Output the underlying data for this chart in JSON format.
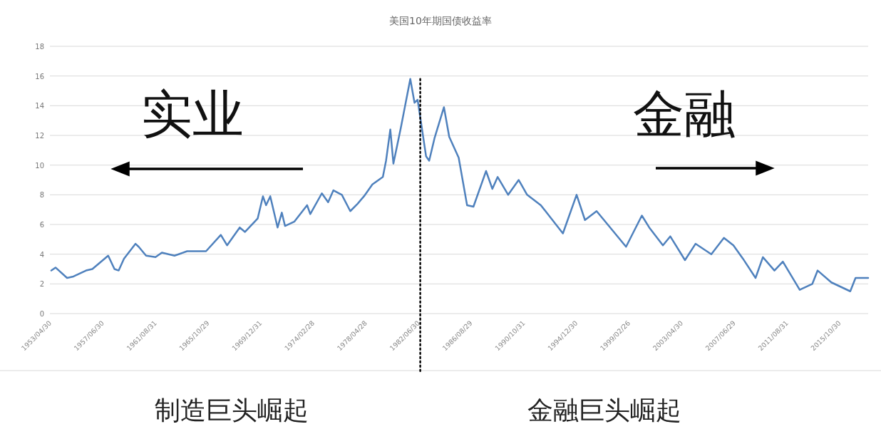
{
  "chart_data": {
    "type": "line",
    "title": "美国10年期国债收益率",
    "x": [
      "1953-04",
      "1953-08",
      "1954-07",
      "1955-01",
      "1956-01",
      "1956-07",
      "1957-10",
      "1958-04",
      "1958-08",
      "1959-01",
      "1959-12",
      "1960-03",
      "1960-10",
      "1961-07",
      "1962-01",
      "1963-01",
      "1964-01",
      "1965-07",
      "1966-09",
      "1967-03",
      "1968-03",
      "1968-08",
      "1969-08",
      "1970-01",
      "1970-04",
      "1970-08",
      "1971-03",
      "1971-07",
      "1971-10",
      "1972-07",
      "1973-07",
      "1973-10",
      "1974-09",
      "1975-03",
      "1975-08",
      "1976-04",
      "1976-12",
      "1977-07",
      "1978-01",
      "1978-09",
      "1979-07",
      "1979-10",
      "1980-02",
      "1980-05",
      "1980-12",
      "1981-09",
      "1982-01",
      "1982-04",
      "1982-12",
      "1983-03",
      "1983-08",
      "1984-05",
      "1984-10",
      "1985-07",
      "1986-03",
      "1986-09",
      "1987-09",
      "1988-03",
      "1988-08",
      "1989-06",
      "1990-04",
      "1990-12",
      "1992-01",
      "1993-10",
      "1994-11",
      "1995-07",
      "1996-06",
      "1997-01",
      "1998-10",
      "2000-01",
      "2000-08",
      "2001-09",
      "2002-04",
      "2003-06",
      "2004-04",
      "2005-07",
      "2006-07",
      "2007-04",
      "2008-01",
      "2009-01",
      "2009-08",
      "2010-07",
      "2011-03",
      "2012-07",
      "2013-07",
      "2013-12",
      "2015-01",
      "2016-07",
      "2016-12",
      "2017-12"
    ],
    "series": [
      {
        "color": "#4f81bd",
        "values": [
          2.9,
          3.1,
          2.4,
          2.5,
          2.9,
          3.0,
          3.9,
          3.0,
          2.9,
          3.7,
          4.7,
          4.5,
          3.9,
          3.8,
          4.1,
          3.9,
          4.2,
          4.2,
          5.3,
          4.6,
          5.8,
          5.5,
          6.4,
          7.9,
          7.3,
          7.9,
          5.8,
          6.8,
          5.9,
          6.2,
          7.3,
          6.7,
          8.1,
          7.5,
          8.3,
          8.0,
          6.9,
          7.4,
          7.9,
          8.7,
          9.2,
          10.3,
          12.4,
          10.1,
          12.5,
          15.8,
          14.2,
          14.4,
          10.6,
          10.3,
          11.8,
          13.9,
          11.9,
          10.5,
          7.3,
          7.2,
          9.6,
          8.4,
          9.2,
          8.0,
          9.0,
          8.0,
          7.3,
          5.4,
          8.0,
          6.3,
          6.9,
          6.3,
          4.5,
          6.6,
          5.8,
          4.6,
          5.2,
          3.6,
          4.7,
          4.0,
          5.1,
          4.6,
          3.7,
          2.4,
          3.8,
          2.9,
          3.5,
          1.6,
          2.0,
          2.9,
          2.1,
          1.5,
          2.4,
          2.4
        ]
      }
    ],
    "xlim": [
      "1953-04",
      "2017-12"
    ],
    "xticks": [
      {
        "value": "1953-04-30",
        "label": "1953/04/30"
      },
      {
        "value": "1957-06-30",
        "label": "1957/06/30"
      },
      {
        "value": "1961-08-31",
        "label": "1961/08/31"
      },
      {
        "value": "1965-10-29",
        "label": "1965/10/29"
      },
      {
        "value": "1969-12-31",
        "label": "1969/12/31"
      },
      {
        "value": "1974-02-28",
        "label": "1974/02/28"
      },
      {
        "value": "1978-04-28",
        "label": "1978/04/28"
      },
      {
        "value": "1982-06-30",
        "label": "1982/06/30"
      },
      {
        "value": "1986-08-29",
        "label": "1986/08/29"
      },
      {
        "value": "1990-10-31",
        "label": "1990/10/31"
      },
      {
        "value": "1994-12-30",
        "label": "1994/12/30"
      },
      {
        "value": "1999-02-26",
        "label": "1999/02/26"
      },
      {
        "value": "2003-04-30",
        "label": "2003/04/30"
      },
      {
        "value": "2007-06-29",
        "label": "2007/06/29"
      },
      {
        "value": "2011-08-31",
        "label": "2011/08/31"
      },
      {
        "value": "2015-10-30",
        "label": "2015/10/30"
      }
    ],
    "ylim": [
      0,
      18
    ],
    "yticks": [
      0,
      2,
      4,
      6,
      8,
      10,
      12,
      14,
      16,
      18
    ],
    "grid": "y",
    "ref_lines": [
      {
        "axis": "x",
        "value": "1982-06-30",
        "color": "#000000",
        "line_style": "dotted"
      }
    ],
    "annotations": [
      "实业",
      "金融",
      "制造巨头崛起",
      "金融巨头崛起"
    ]
  }
}
